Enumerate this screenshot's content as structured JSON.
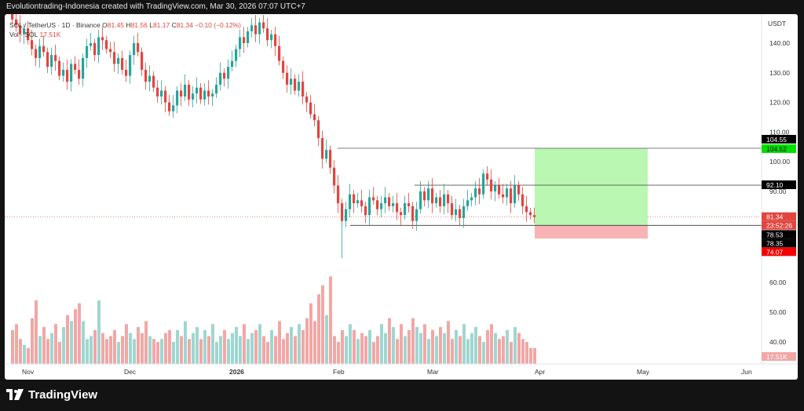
{
  "header": {
    "text": "Evolutiontrading-Indonesia created with TradingView.com, Mar 30, 2026 07:07 UTC+7"
  },
  "legend": {
    "symbol": "SOL / TetherUS · 1D · Binance",
    "o_label": "O",
    "o_value": "81.45",
    "h_label": "H",
    "h_value": "81.56",
    "l_label": "L",
    "l_value": "81.17",
    "c_label": "C",
    "c_value": "81.34",
    "change": "−0.10 (−0.12%)",
    "vol_label": "Vol · SOL",
    "vol_value": "17.51K"
  },
  "footer": {
    "brand": "TradingView"
  },
  "colors": {
    "up": "#26a69a",
    "down": "#e2453f",
    "vol_up": "#9fd6d0",
    "vol_down": "#f2a7a5",
    "target": "#b9f7b2",
    "stop": "#f8b4b4"
  },
  "chart_data": {
    "type": "candlestick",
    "currency": "USDT",
    "x_labels": [
      "Nov",
      "Dec",
      "2026",
      "Feb",
      "Mar",
      "Apr",
      "May",
      "Jun"
    ],
    "price_ticks": [
      "140.00",
      "130.00",
      "120.00",
      "110.00",
      "100.00",
      "90.00"
    ],
    "volume_ticks": [
      "60.00",
      "50.00",
      "40.00"
    ],
    "price_range": [
      72,
      148
    ],
    "volume_range": [
      36,
      66
    ],
    "closes": [
      148,
      146,
      143,
      145,
      141,
      138,
      135,
      139,
      137,
      132,
      136,
      134,
      129,
      131,
      127,
      133,
      131,
      128,
      135,
      139,
      140,
      136,
      142,
      141,
      138,
      137,
      133,
      135,
      131,
      129,
      136,
      140,
      137,
      131,
      127,
      129,
      125,
      122,
      124,
      120,
      117,
      119,
      124,
      122,
      126,
      121,
      123,
      125,
      121,
      124,
      122,
      123,
      126,
      130,
      128,
      132,
      134,
      138,
      142,
      140,
      144,
      146,
      143,
      147,
      145,
      141,
      143,
      139,
      134,
      130,
      126,
      128,
      124,
      127,
      122,
      120,
      116,
      114,
      108,
      101,
      104,
      98,
      92,
      86,
      80,
      84,
      89,
      86,
      87,
      85,
      82,
      88,
      87,
      84,
      86,
      88,
      85,
      86,
      83,
      82,
      86,
      85,
      80,
      84,
      90,
      87,
      91,
      86,
      88,
      85,
      89,
      86,
      82,
      84,
      81,
      85,
      87,
      88,
      91,
      89,
      96,
      94,
      90,
      92,
      89,
      88,
      91,
      86,
      92,
      89,
      85,
      83,
      82,
      81.34
    ],
    "volume": [
      44,
      46,
      41,
      39,
      38,
      48,
      54,
      42,
      45,
      41,
      43,
      46,
      40,
      45,
      49,
      47,
      51,
      53,
      47,
      41,
      42,
      44,
      54,
      43,
      41,
      42,
      44,
      40,
      42,
      46,
      43,
      41,
      45,
      43,
      47,
      42,
      41,
      40,
      41,
      43,
      44,
      40,
      44,
      42,
      47,
      41,
      43,
      45,
      41,
      44,
      42,
      46,
      40,
      42,
      44,
      41,
      43,
      45,
      42,
      46,
      41,
      43,
      44,
      46,
      42,
      40,
      44,
      42,
      47,
      41,
      43,
      45,
      42,
      46,
      44,
      48,
      53,
      47,
      56,
      59,
      49,
      62,
      42,
      40,
      44,
      42,
      46,
      44,
      41,
      43,
      42,
      44,
      40,
      42,
      46,
      43,
      48,
      45,
      41,
      46,
      42,
      44,
      48,
      45,
      43,
      46,
      41,
      44,
      42,
      45,
      43,
      47,
      41,
      44,
      42,
      46,
      41,
      43,
      45,
      42,
      40,
      44,
      46,
      43,
      41,
      42,
      44,
      40,
      45,
      43,
      41,
      40,
      38,
      38
    ],
    "annotations": {
      "resistance": "92.10",
      "take_profit": "104.55",
      "target_tag": "104.52",
      "current_price": "81.34",
      "countdown": "23:52:26",
      "entry_a": "78.53",
      "entry_b": "78.35",
      "stop": "74.07",
      "volume_tag": "17.51K"
    },
    "lines": {
      "top": 104.55,
      "mid": 92.1,
      "low": 78.53
    }
  }
}
